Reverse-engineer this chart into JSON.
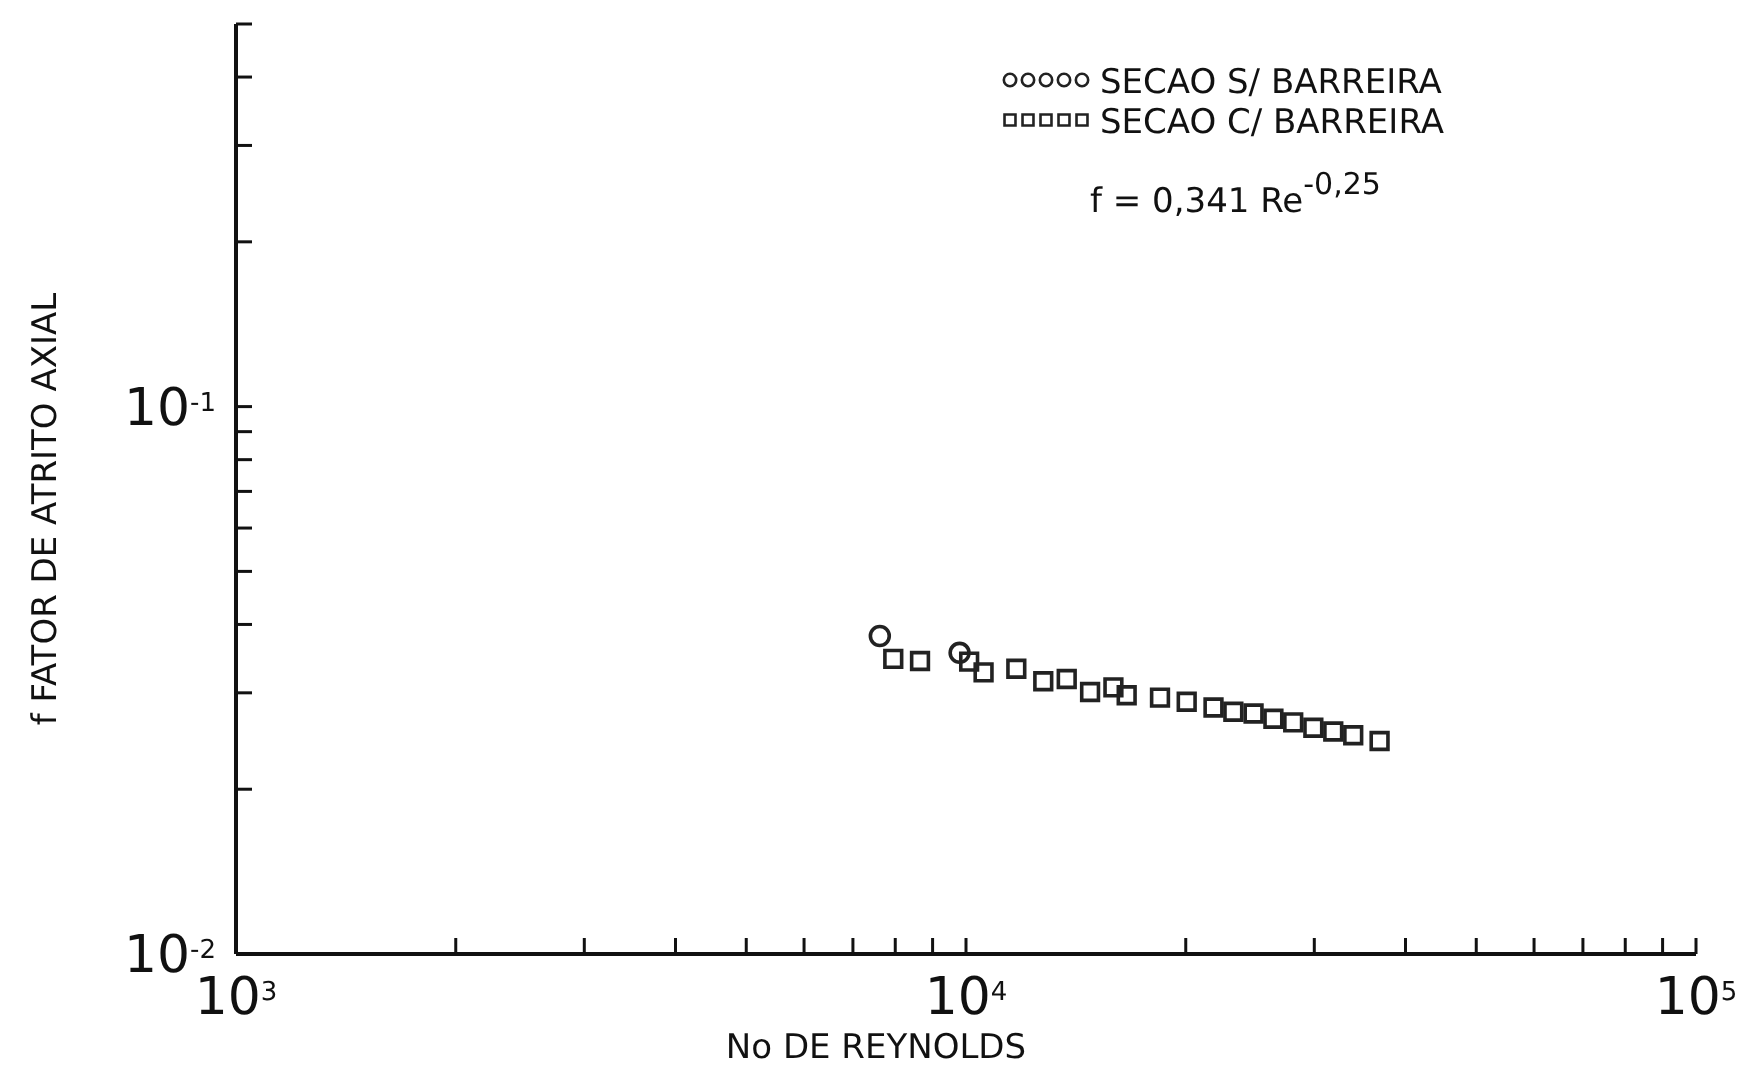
{
  "chart_data": {
    "type": "scatter",
    "xlabel": "No DE REYNOLDS",
    "ylabel": "f    FATOR DE ATRITO AXIAL",
    "log": "xy",
    "grid": false,
    "legend": "top right",
    "xlim": [
      1000,
      100000
    ],
    "xticks": [
      {
        "value": 1000,
        "label": "10$^{3}$"
      },
      {
        "value": 2000,
        "label": null
      },
      {
        "value": 3000,
        "label": null
      },
      {
        "value": 4000,
        "label": null
      },
      {
        "value": 5000,
        "label": null
      },
      {
        "value": 6000,
        "label": null
      },
      {
        "value": 7000,
        "label": null
      },
      {
        "value": 8000,
        "label": null
      },
      {
        "value": 9000,
        "label": null
      },
      {
        "value": 10000,
        "label": "10$^{4}$"
      },
      {
        "value": 20000,
        "label": null
      },
      {
        "value": 30000,
        "label": null
      },
      {
        "value": 40000,
        "label": null
      },
      {
        "value": 50000,
        "label": null
      },
      {
        "value": 60000,
        "label": null
      },
      {
        "value": 70000,
        "label": null
      },
      {
        "value": 80000,
        "label": null
      },
      {
        "value": 90000,
        "label": null
      },
      {
        "value": 100000,
        "label": "10$^{5}$"
      }
    ],
    "ylim": [
      0.01,
      0.5
    ],
    "yticks": [
      {
        "value": 0.01,
        "label": "10$^{-2}$"
      },
      {
        "value": 0.02,
        "label": null
      },
      {
        "value": 0.03,
        "label": null
      },
      {
        "value": 0.04,
        "label": null
      },
      {
        "value": 0.05,
        "label": null
      },
      {
        "value": 0.06,
        "label": null
      },
      {
        "value": 0.07,
        "label": null
      },
      {
        "value": 0.08,
        "label": null
      },
      {
        "value": 0.09,
        "label": null
      },
      {
        "value": 0.1,
        "label": "10$^{-1}$"
      },
      {
        "value": 0.2,
        "label": null
      },
      {
        "value": 0.3,
        "label": null
      },
      {
        "value": 0.4,
        "label": null
      },
      {
        "value": 0.5,
        "label": null
      }
    ],
    "annotations": [
      "f = 0,341 Re$^{-0,25}$"
    ],
    "series": [
      {
        "name": "SECAO S/ BARREIRA",
        "color": "#222222",
        "marker": "circle",
        "x": [
          7620,
          9800
        ],
        "values": [
          0.0381,
          0.0355
        ]
      },
      {
        "name": "SECAO C/ BARREIRA",
        "color": "#222222",
        "marker": "square",
        "x": [
          7950,
          8650,
          10100,
          10570,
          11720,
          12760,
          13740,
          14790,
          15920,
          16600,
          18440,
          20060,
          21830,
          23240,
          24770,
          26370,
          28070,
          29910,
          31850,
          33920,
          36860
        ],
        "values": [
          0.0346,
          0.0343,
          0.0342,
          0.0327,
          0.0332,
          0.0315,
          0.0318,
          0.0301,
          0.0307,
          0.0297,
          0.0294,
          0.0289,
          0.0282,
          0.0277,
          0.0275,
          0.0269,
          0.0265,
          0.0259,
          0.0255,
          0.0251,
          0.0245
        ]
      }
    ]
  }
}
